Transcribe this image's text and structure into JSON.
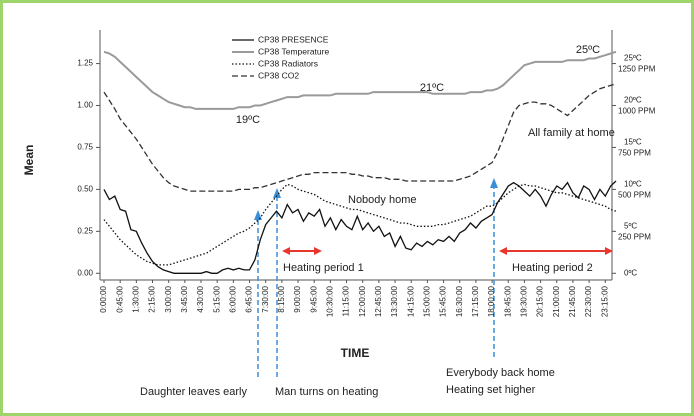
{
  "chart_data": {
    "type": "line",
    "y_label": "Mean",
    "x_label": "TIME",
    "categories": [
      "0:00:00",
      null,
      null,
      "0:45:00",
      null,
      null,
      "1:30:00",
      null,
      null,
      "2:15:00",
      null,
      null,
      "3:00:00",
      null,
      null,
      "3:45:00",
      null,
      null,
      "4:30:00",
      null,
      null,
      "5:15:00",
      null,
      null,
      "6:00:00",
      null,
      null,
      "6:45:00",
      null,
      null,
      "7:30:00",
      null,
      null,
      "8:15:00",
      null,
      null,
      "9:00:00",
      null,
      null,
      "9:45:00",
      null,
      null,
      "10:30:00",
      null,
      null,
      "11:15:00",
      null,
      null,
      "12:00:00",
      null,
      null,
      "12:45:00",
      null,
      null,
      "13:30:00",
      null,
      null,
      "14:15:00",
      null,
      null,
      "15:00:00",
      null,
      null,
      "15:45:00",
      null,
      null,
      "16:30:00",
      null,
      null,
      "17:15:00",
      null,
      null,
      "18:00:00",
      null,
      null,
      "18:45:00",
      null,
      null,
      "19:30:00",
      null,
      null,
      "20:15:00",
      null,
      null,
      "21:00:00",
      null,
      null,
      "21:45:00",
      null,
      null,
      "22:30:00",
      null,
      null,
      "23:15:00",
      null,
      null
    ],
    "series": [
      {
        "name": "CP38 PRESENCE",
        "color": "#111111",
        "dash": "solid",
        "values": [
          0.5,
          0.44,
          0.46,
          0.38,
          0.37,
          0.26,
          0.25,
          0.18,
          0.12,
          0.07,
          0.04,
          0.02,
          0.01,
          0.0,
          0.0,
          0.0,
          0.0,
          0.0,
          0.0,
          0.01,
          0.0,
          0.0,
          0.02,
          0.03,
          0.02,
          0.03,
          0.02,
          0.02,
          0.08,
          0.2,
          0.29,
          0.33,
          0.37,
          0.33,
          0.41,
          0.36,
          0.38,
          0.31,
          0.36,
          0.34,
          0.38,
          0.28,
          0.33,
          0.26,
          0.32,
          0.28,
          0.26,
          0.34,
          0.26,
          0.3,
          0.25,
          0.28,
          0.22,
          0.24,
          0.16,
          0.22,
          0.15,
          0.14,
          0.18,
          0.16,
          0.19,
          0.17,
          0.2,
          0.19,
          0.22,
          0.19,
          0.24,
          0.26,
          0.3,
          0.27,
          0.31,
          0.33,
          0.35,
          0.42,
          0.47,
          0.52,
          0.54,
          0.52,
          0.49,
          0.46,
          0.5,
          0.46,
          0.4,
          0.47,
          0.52,
          0.5,
          0.54,
          0.48,
          0.45,
          0.52,
          0.5,
          0.44,
          0.5,
          0.46,
          0.52,
          0.55
        ]
      },
      {
        "name": "CP38 Temperature",
        "color": "#9a9a9a",
        "dash": "solid",
        "values": [
          1.32,
          1.31,
          1.29,
          1.26,
          1.23,
          1.2,
          1.17,
          1.14,
          1.11,
          1.08,
          1.06,
          1.04,
          1.02,
          1.01,
          1.0,
          0.99,
          0.99,
          0.98,
          0.98,
          0.98,
          0.98,
          0.98,
          0.98,
          0.98,
          0.98,
          0.99,
          0.99,
          0.99,
          1.0,
          1.0,
          1.01,
          1.02,
          1.03,
          1.04,
          1.05,
          1.05,
          1.05,
          1.06,
          1.06,
          1.06,
          1.06,
          1.06,
          1.06,
          1.07,
          1.07,
          1.07,
          1.07,
          1.07,
          1.07,
          1.07,
          1.08,
          1.08,
          1.08,
          1.08,
          1.08,
          1.08,
          1.08,
          1.08,
          1.08,
          1.08,
          1.08,
          1.07,
          1.07,
          1.07,
          1.07,
          1.07,
          1.07,
          1.07,
          1.08,
          1.08,
          1.08,
          1.09,
          1.09,
          1.1,
          1.12,
          1.15,
          1.18,
          1.21,
          1.24,
          1.25,
          1.26,
          1.26,
          1.26,
          1.26,
          1.26,
          1.26,
          1.27,
          1.27,
          1.27,
          1.27,
          1.28,
          1.28,
          1.29,
          1.3,
          1.31,
          1.32
        ]
      },
      {
        "name": "CP38 Radiators",
        "color": "#111111",
        "dash": "dotted",
        "values": [
          0.32,
          0.28,
          0.24,
          0.2,
          0.17,
          0.14,
          0.11,
          0.09,
          0.07,
          0.06,
          0.05,
          0.05,
          0.05,
          0.06,
          0.07,
          0.08,
          0.09,
          0.1,
          0.11,
          0.12,
          0.14,
          0.16,
          0.18,
          0.2,
          0.22,
          0.24,
          0.25,
          0.27,
          0.3,
          0.33,
          0.38,
          0.42,
          0.46,
          0.5,
          0.53,
          0.52,
          0.5,
          0.49,
          0.48,
          0.47,
          0.45,
          0.43,
          0.42,
          0.41,
          0.4,
          0.39,
          0.38,
          0.38,
          0.37,
          0.36,
          0.35,
          0.34,
          0.33,
          0.32,
          0.31,
          0.3,
          0.3,
          0.29,
          0.28,
          0.28,
          0.28,
          0.28,
          0.29,
          0.29,
          0.3,
          0.31,
          0.32,
          0.33,
          0.34,
          0.36,
          0.38,
          0.4,
          0.4,
          0.42,
          0.45,
          0.48,
          0.5,
          0.52,
          0.53,
          0.52,
          0.52,
          0.51,
          0.5,
          0.49,
          0.48,
          0.48,
          0.47,
          0.46,
          0.45,
          0.44,
          0.43,
          0.42,
          0.41,
          0.4,
          0.38,
          0.37
        ]
      },
      {
        "name": "CP38 CO2",
        "color": "#333333",
        "dash": "dashed",
        "values": [
          1.08,
          1.03,
          0.98,
          0.92,
          0.88,
          0.84,
          0.8,
          0.75,
          0.7,
          0.65,
          0.61,
          0.57,
          0.54,
          0.52,
          0.51,
          0.5,
          0.49,
          0.49,
          0.49,
          0.49,
          0.49,
          0.49,
          0.49,
          0.49,
          0.49,
          0.5,
          0.5,
          0.5,
          0.51,
          0.51,
          0.52,
          0.53,
          0.54,
          0.55,
          0.56,
          0.57,
          0.58,
          0.59,
          0.59,
          0.6,
          0.6,
          0.6,
          0.6,
          0.6,
          0.6,
          0.6,
          0.59,
          0.59,
          0.58,
          0.58,
          0.57,
          0.57,
          0.57,
          0.56,
          0.56,
          0.56,
          0.55,
          0.55,
          0.55,
          0.55,
          0.55,
          0.55,
          0.55,
          0.55,
          0.55,
          0.55,
          0.56,
          0.57,
          0.58,
          0.6,
          0.62,
          0.64,
          0.66,
          0.72,
          0.8,
          0.88,
          0.96,
          1.0,
          1.01,
          1.02,
          1.02,
          1.01,
          1.01,
          1.0,
          0.98,
          0.96,
          0.94,
          0.97,
          1.0,
          1.03,
          1.06,
          1.08,
          1.1,
          1.11,
          1.12,
          1.13
        ]
      }
    ],
    "ylim": [
      -0.04,
      1.45
    ],
    "yticks": [
      {
        "value": 0,
        "label": "0.00"
      },
      {
        "value": 0.25,
        "label": "0.25"
      },
      {
        "value": 0.5,
        "label": "0.50"
      },
      {
        "value": 0.75,
        "label": "0.75"
      },
      {
        "value": 1,
        "label": "1.00"
      },
      {
        "value": 1.25,
        "label": "1.25"
      }
    ],
    "y2lim": [
      -0.8,
      29
    ],
    "y2ticks": [
      {
        "value": 0,
        "label": "0ºC"
      },
      {
        "value": 5,
        "label": "5ºC",
        "ppm": "250 PPM"
      },
      {
        "value": 10,
        "label": "10ºC",
        "ppm": "500 PPM"
      },
      {
        "value": 15,
        "label": "15ºC",
        "ppm": "750 PPM"
      },
      {
        "value": 20,
        "label": "20ºC",
        "ppm": "1000 PPM"
      },
      {
        "value": 25,
        "label": "25ºC",
        "ppm": "1250 PPM"
      }
    ],
    "annotations": [
      "19ºC",
      "21ºC",
      "25ºC",
      "Nobody home",
      "All family at home",
      "Heating period 1",
      "Heating period 2",
      "Daughter leaves early",
      "Man turns on heating",
      "Everybody back home",
      "Heating set higher"
    ]
  }
}
